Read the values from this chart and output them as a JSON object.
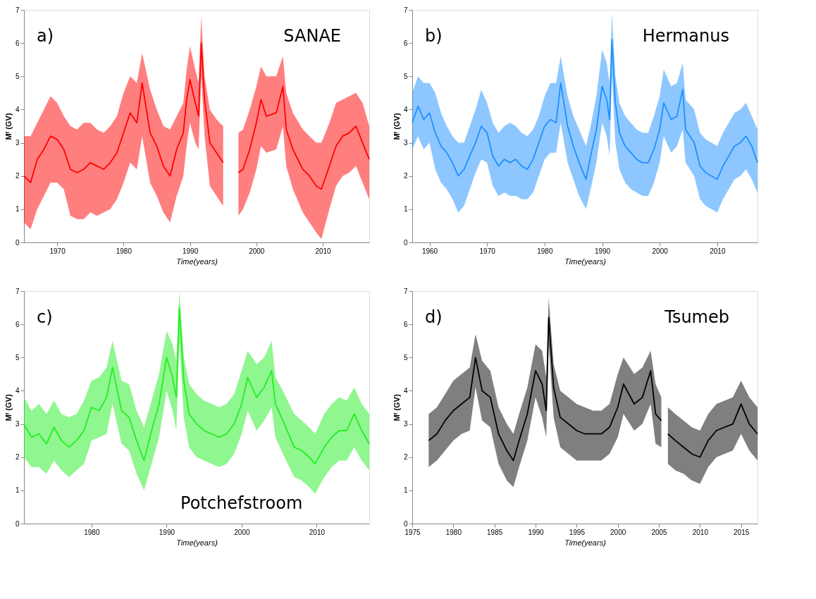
{
  "chart_data": [
    {
      "type": "line",
      "xlabel": "Time(years)",
      "ylabel": "Mᶠ (GV)",
      "annotations": [
        "a)",
        "SANAE"
      ],
      "xlim": [
        1965,
        2017
      ],
      "xticks": [
        1970,
        1980,
        1990,
        2000,
        2010
      ],
      "ylim": [
        0,
        7
      ],
      "yticks": [
        0,
        1,
        2,
        3,
        4,
        5,
        6,
        7
      ],
      "marker": "none",
      "line_style": "solid",
      "series": [
        {
          "color": "#ff0000",
          "x": [
            1965,
            1966,
            1967,
            1968,
            1969,
            1970,
            1971,
            1972,
            1973,
            1974,
            1975,
            1976,
            1977,
            1978,
            1979,
            1980,
            1981,
            1982,
            1982.8,
            1984,
            1985,
            1986,
            1987,
            1988,
            1989,
            1989.5,
            1990,
            1990.8,
            1991.3,
            1991.7,
            1992.2,
            1993,
            1994,
            1995,
            1995.5,
            1997.3,
            1998,
            1999,
            2000,
            2000.7,
            2001.5,
            2003,
            2004,
            2004.5,
            2005.5,
            2007,
            2008,
            2009,
            2009.8,
            2011,
            2012,
            2013,
            2014,
            2015,
            2016,
            2017
          ],
          "values": [
            2.0,
            1.8,
            2.5,
            2.8,
            3.2,
            3.1,
            2.8,
            2.2,
            2.1,
            2.2,
            2.4,
            2.3,
            2.2,
            2.4,
            2.7,
            3.3,
            3.9,
            3.6,
            4.8,
            3.3,
            2.9,
            2.3,
            2.0,
            2.8,
            3.3,
            4.3,
            4.9,
            4.2,
            3.8,
            6.0,
            4.3,
            3.0,
            2.7,
            2.4,
            null,
            2.1,
            2.2,
            2.8,
            3.6,
            4.3,
            3.8,
            3.9,
            4.7,
            3.4,
            2.8,
            2.2,
            2.0,
            1.7,
            1.6,
            2.3,
            2.9,
            3.2,
            3.3,
            3.5,
            3.0,
            2.5
          ],
          "lower": [
            0.6,
            0.4,
            1.0,
            1.4,
            1.8,
            1.8,
            1.6,
            0.8,
            0.7,
            0.7,
            0.9,
            0.8,
            0.9,
            1.0,
            1.3,
            1.8,
            2.4,
            2.2,
            3.2,
            1.8,
            1.4,
            0.9,
            0.6,
            1.4,
            2.0,
            2.9,
            3.6,
            3.0,
            2.8,
            5.0,
            3.2,
            1.7,
            1.4,
            1.1,
            null,
            0.8,
            1.0,
            1.5,
            2.2,
            2.9,
            2.7,
            2.8,
            3.5,
            2.3,
            1.6,
            0.9,
            0.6,
            0.3,
            0.1,
            1.0,
            1.7,
            2.0,
            2.1,
            2.3,
            1.8,
            1.3
          ],
          "upper": [
            3.2,
            3.2,
            3.6,
            4.0,
            4.4,
            4.2,
            3.8,
            3.5,
            3.4,
            3.6,
            3.6,
            3.4,
            3.3,
            3.5,
            3.8,
            4.5,
            5.0,
            4.8,
            5.7,
            4.6,
            4.0,
            3.5,
            3.4,
            3.8,
            4.2,
            5.2,
            5.9,
            5.2,
            4.8,
            6.8,
            5.0,
            4.0,
            3.7,
            3.5,
            null,
            3.3,
            3.4,
            4.0,
            4.7,
            5.3,
            5.0,
            5.0,
            5.6,
            4.5,
            3.9,
            3.4,
            3.2,
            3.0,
            3.0,
            3.6,
            4.2,
            4.3,
            4.4,
            4.5,
            4.2,
            3.5
          ]
        }
      ]
    },
    {
      "type": "line",
      "xlabel": "Time(years)",
      "ylabel": "Mᶠ (GV)",
      "annotations": [
        "b)",
        "Hermanus"
      ],
      "xlim": [
        1957,
        2017
      ],
      "xticks": [
        1960,
        1970,
        1980,
        1990,
        2000,
        2010
      ],
      "ylim": [
        0,
        7
      ],
      "yticks": [
        0,
        1,
        2,
        3,
        4,
        5,
        6,
        7
      ],
      "marker": "none",
      "line_style": "solid",
      "series": [
        {
          "color": "#1e90ff",
          "x": [
            1957,
            1958,
            1959,
            1960,
            1961,
            1962,
            1963,
            1964,
            1965,
            1966,
            1967,
            1968,
            1969,
            1970,
            1971,
            1972,
            1973,
            1974,
            1975,
            1976,
            1977,
            1978,
            1979,
            1980,
            1981,
            1982,
            1982.8,
            1984,
            1985,
            1986,
            1987.2,
            1988,
            1989,
            1990,
            1990.8,
            1991.3,
            1991.7,
            1992.3,
            1993,
            1994,
            1995,
            1996,
            1997,
            1998,
            1999,
            2000,
            2000.7,
            2002,
            2003,
            2004,
            2004.5,
            2006,
            2007,
            2008,
            2009,
            2010,
            2011,
            2012,
            2013,
            2014,
            2015,
            2016,
            2017
          ],
          "values": [
            3.6,
            4.1,
            3.7,
            3.9,
            3.3,
            2.9,
            2.7,
            2.4,
            2.0,
            2.2,
            2.6,
            3.0,
            3.5,
            3.3,
            2.6,
            2.3,
            2.5,
            2.4,
            2.5,
            2.3,
            2.2,
            2.5,
            3.0,
            3.5,
            3.7,
            3.6,
            4.8,
            3.5,
            2.9,
            2.4,
            1.9,
            2.6,
            3.4,
            4.7,
            4.3,
            3.7,
            6.1,
            4.2,
            3.3,
            2.9,
            2.7,
            2.5,
            2.4,
            2.4,
            2.8,
            3.4,
            4.2,
            3.7,
            3.8,
            4.6,
            3.4,
            3.0,
            2.3,
            2.1,
            2.0,
            1.9,
            2.3,
            2.6,
            2.9,
            3.0,
            3.2,
            2.9,
            2.4
          ],
          "lower": [
            2.8,
            3.2,
            2.8,
            3.0,
            2.2,
            1.8,
            1.6,
            1.3,
            0.9,
            1.1,
            1.6,
            2.1,
            2.5,
            2.4,
            1.7,
            1.4,
            1.5,
            1.4,
            1.4,
            1.3,
            1.3,
            1.5,
            2.0,
            2.5,
            2.7,
            2.7,
            3.6,
            2.4,
            1.9,
            1.4,
            1.0,
            1.6,
            2.4,
            3.6,
            3.2,
            2.6,
            5.0,
            3.0,
            2.2,
            1.8,
            1.6,
            1.5,
            1.4,
            1.4,
            1.8,
            2.4,
            3.2,
            2.7,
            2.9,
            3.4,
            2.4,
            2.0,
            1.3,
            1.1,
            1.0,
            0.9,
            1.3,
            1.6,
            1.9,
            2.0,
            2.2,
            1.9,
            1.5
          ],
          "upper": [
            4.5,
            5.0,
            4.8,
            4.8,
            4.5,
            3.9,
            3.5,
            3.2,
            3.0,
            3.0,
            3.5,
            4.0,
            4.6,
            4.2,
            3.6,
            3.3,
            3.5,
            3.6,
            3.5,
            3.3,
            3.2,
            3.4,
            3.8,
            4.4,
            4.8,
            4.8,
            5.6,
            4.4,
            3.8,
            3.4,
            2.9,
            3.5,
            4.4,
            5.8,
            5.4,
            4.8,
            6.9,
            5.0,
            4.2,
            3.8,
            3.6,
            3.4,
            3.3,
            3.3,
            3.8,
            4.4,
            5.2,
            4.7,
            4.8,
            5.4,
            4.3,
            4.0,
            3.3,
            3.1,
            3.0,
            2.9,
            3.3,
            3.6,
            3.9,
            4.0,
            4.2,
            3.8,
            3.4
          ]
        }
      ]
    },
    {
      "type": "line",
      "xlabel": "Time(years)",
      "ylabel": "Mᶠ (GV)",
      "annotations": [
        "c)",
        "Potchefstroom"
      ],
      "xlim": [
        1971,
        2017
      ],
      "xticks": [
        1980,
        1990,
        2000,
        2010
      ],
      "ylim": [
        0,
        7
      ],
      "yticks": [
        0,
        1,
        2,
        3,
        4,
        5,
        6,
        7
      ],
      "marker": "none",
      "line_style": "solid",
      "series": [
        {
          "color": "#22ee22",
          "x": [
            1971,
            1972,
            1973,
            1974,
            1975,
            1976,
            1977,
            1978,
            1979,
            1980,
            1981,
            1982,
            1982.8,
            1984,
            1985,
            1986,
            1987,
            1988,
            1989,
            1990,
            1990.8,
            1991.3,
            1991.7,
            1992.3,
            1993,
            1994,
            1995,
            1996,
            1997,
            1998,
            1999,
            2000,
            2000.8,
            2002,
            2003,
            2004,
            2004.5,
            2005.5,
            2007,
            2008,
            2009,
            2009.8,
            2011,
            2012,
            2013,
            2014,
            2015,
            2016,
            2017
          ],
          "values": [
            3.0,
            2.6,
            2.7,
            2.4,
            2.9,
            2.5,
            2.3,
            2.5,
            2.8,
            3.5,
            3.4,
            3.8,
            4.7,
            3.4,
            3.2,
            2.5,
            1.9,
            2.8,
            3.6,
            5.0,
            4.4,
            3.8,
            6.5,
            4.3,
            3.3,
            3.0,
            2.8,
            2.7,
            2.6,
            2.7,
            3.0,
            3.6,
            4.4,
            3.8,
            4.1,
            4.6,
            3.6,
            3.1,
            2.3,
            2.2,
            2.0,
            1.8,
            2.3,
            2.6,
            2.8,
            2.8,
            3.3,
            2.8,
            2.4
          ],
          "lower": [
            2.0,
            1.7,
            1.7,
            1.5,
            1.9,
            1.6,
            1.4,
            1.6,
            1.8,
            2.5,
            2.6,
            2.7,
            3.6,
            2.4,
            2.2,
            1.5,
            1.0,
            1.8,
            2.6,
            4.0,
            3.4,
            2.8,
            5.5,
            3.2,
            2.3,
            2.0,
            1.9,
            1.8,
            1.7,
            1.8,
            2.1,
            2.7,
            3.4,
            2.8,
            3.1,
            3.5,
            2.6,
            2.1,
            1.4,
            1.3,
            1.1,
            0.9,
            1.4,
            1.7,
            1.9,
            1.9,
            2.3,
            1.9,
            1.6
          ],
          "upper": [
            3.8,
            3.4,
            3.6,
            3.3,
            3.7,
            3.3,
            3.2,
            3.3,
            3.7,
            4.3,
            4.4,
            4.7,
            5.5,
            4.3,
            4.2,
            3.4,
            2.9,
            3.7,
            4.5,
            5.8,
            5.4,
            4.9,
            7.0,
            5.0,
            4.2,
            3.9,
            3.7,
            3.6,
            3.5,
            3.6,
            3.9,
            4.6,
            5.2,
            4.8,
            5.0,
            5.5,
            4.4,
            4.0,
            3.3,
            3.1,
            2.9,
            2.7,
            3.3,
            3.6,
            3.8,
            3.7,
            4.1,
            3.6,
            3.3
          ]
        }
      ]
    },
    {
      "type": "line",
      "xlabel": "Time(years)",
      "ylabel": "Mᶠ (GV)",
      "annotations": [
        "d)",
        "Tsumeb"
      ],
      "xlim": [
        1975,
        2017
      ],
      "xticks": [
        1975,
        1980,
        1985,
        1990,
        1995,
        2000,
        2005,
        2010,
        2015
      ],
      "ylim": [
        0,
        7
      ],
      "yticks": [
        0,
        1,
        2,
        3,
        4,
        5,
        6,
        7
      ],
      "marker": "none",
      "line_style": "solid",
      "series": [
        {
          "color": "#000000",
          "x": [
            1977,
            1978,
            1979,
            1980,
            1981,
            1982,
            1982.7,
            1983.5,
            1984.5,
            1985.5,
            1986.5,
            1987.3,
            1988,
            1989,
            1990,
            1990.8,
            1991.3,
            1991.6,
            1992.2,
            1993,
            1994,
            1995,
            1996,
            1997,
            1998,
            1999,
            2000,
            2000.7,
            2002,
            2003,
            2004,
            2004.6,
            2005.3,
            2005.6,
            2006.1,
            2007,
            2008,
            2009,
            2010,
            2011,
            2012,
            2013,
            2014,
            2015,
            2016,
            2017
          ],
          "values": [
            2.5,
            2.7,
            3.1,
            3.4,
            3.6,
            3.8,
            5.0,
            4.0,
            3.8,
            2.7,
            2.2,
            1.9,
            2.5,
            3.3,
            4.6,
            4.2,
            3.4,
            6.2,
            4.1,
            3.2,
            3.0,
            2.8,
            2.7,
            2.7,
            2.7,
            2.9,
            3.5,
            4.2,
            3.6,
            3.8,
            4.6,
            3.3,
            3.1,
            null,
            2.7,
            2.5,
            2.3,
            2.1,
            2.0,
            2.5,
            2.8,
            2.9,
            3.0,
            3.6,
            3.0,
            2.7
          ],
          "lower": [
            1.7,
            1.9,
            2.2,
            2.5,
            2.7,
            2.8,
            4.1,
            3.1,
            2.9,
            1.8,
            1.3,
            1.1,
            1.7,
            2.5,
            3.8,
            3.2,
            2.6,
            5.4,
            3.2,
            2.3,
            2.1,
            1.9,
            1.9,
            1.9,
            1.9,
            2.1,
            2.6,
            3.3,
            2.8,
            3.0,
            3.6,
            2.4,
            2.3,
            null,
            1.8,
            1.6,
            1.5,
            1.3,
            1.2,
            1.7,
            2.0,
            2.1,
            2.2,
            2.7,
            2.2,
            1.9
          ],
          "upper": [
            3.3,
            3.5,
            3.9,
            4.3,
            4.5,
            4.7,
            5.7,
            4.9,
            4.6,
            3.5,
            3.0,
            2.7,
            3.3,
            4.1,
            5.4,
            5.2,
            4.4,
            6.8,
            4.8,
            4.0,
            3.8,
            3.6,
            3.5,
            3.4,
            3.4,
            3.6,
            4.5,
            5.0,
            4.5,
            4.7,
            5.2,
            4.2,
            3.8,
            null,
            3.5,
            3.3,
            3.1,
            2.9,
            2.8,
            3.3,
            3.6,
            3.7,
            3.8,
            4.3,
            3.8,
            3.5
          ]
        }
      ]
    }
  ]
}
